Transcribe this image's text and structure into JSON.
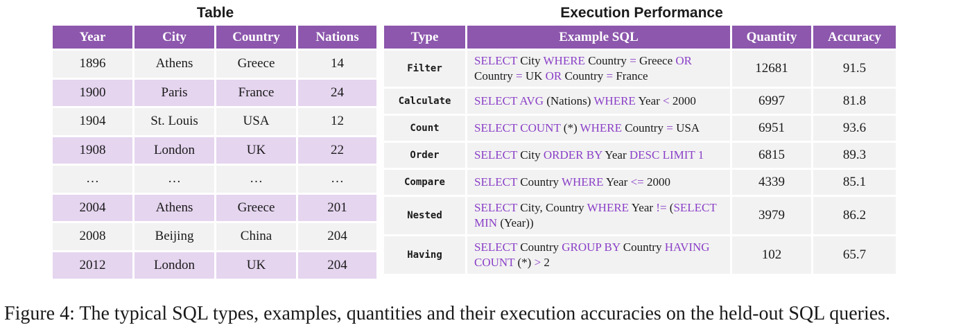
{
  "left_table": {
    "title": "Table",
    "headers": [
      "Year",
      "City",
      "Country",
      "Nations"
    ],
    "rows": [
      [
        "1896",
        "Athens",
        "Greece",
        "14"
      ],
      [
        "1900",
        "Paris",
        "France",
        "24"
      ],
      [
        "1904",
        "St. Louis",
        "USA",
        "12"
      ],
      [
        "1908",
        "London",
        "UK",
        "22"
      ],
      [
        "…",
        "…",
        "…",
        "…"
      ],
      [
        "2004",
        "Athens",
        "Greece",
        "201"
      ],
      [
        "2008",
        "Beijing",
        "China",
        "204"
      ],
      [
        "2012",
        "London",
        "UK",
        "204"
      ]
    ]
  },
  "right_table": {
    "title": "Execution Performance",
    "headers": [
      "Type",
      "Example SQL",
      "Quantity",
      "Accuracy"
    ],
    "rows": [
      {
        "type": "Filter",
        "sql": [
          [
            "SELECT",
            true
          ],
          [
            " City ",
            false
          ],
          [
            "WHERE",
            true
          ],
          [
            " Country ",
            false
          ],
          [
            "=",
            true
          ],
          [
            " Greece ",
            false
          ],
          [
            "OR",
            true
          ],
          [
            " Country ",
            false
          ],
          [
            "=",
            true
          ],
          [
            " UK ",
            false
          ],
          [
            "OR",
            true
          ],
          [
            " Country ",
            false
          ],
          [
            "=",
            true
          ],
          [
            " France",
            false
          ]
        ],
        "quantity": "12681",
        "accuracy": "91.5"
      },
      {
        "type": "Calculate",
        "sql": [
          [
            "SELECT AVG",
            true
          ],
          [
            " (Nations) ",
            false
          ],
          [
            "WHERE",
            true
          ],
          [
            " Year ",
            false
          ],
          [
            "<",
            true
          ],
          [
            " 2000",
            false
          ]
        ],
        "quantity": "6997",
        "accuracy": "81.8"
      },
      {
        "type": "Count",
        "sql": [
          [
            "SELECT COUNT",
            true
          ],
          [
            " (*) ",
            false
          ],
          [
            "WHERE",
            true
          ],
          [
            " Country ",
            false
          ],
          [
            "=",
            true
          ],
          [
            " USA",
            false
          ]
        ],
        "quantity": "6951",
        "accuracy": "93.6"
      },
      {
        "type": "Order",
        "sql": [
          [
            "SELECT",
            true
          ],
          [
            " City ",
            false
          ],
          [
            "ORDER BY",
            true
          ],
          [
            " Year ",
            false
          ],
          [
            "DESC LIMIT 1",
            true
          ]
        ],
        "quantity": "6815",
        "accuracy": "89.3"
      },
      {
        "type": "Compare",
        "sql": [
          [
            "SELECT",
            true
          ],
          [
            " Country ",
            false
          ],
          [
            "WHERE",
            true
          ],
          [
            " Year ",
            false
          ],
          [
            "<=",
            true
          ],
          [
            " 2000",
            false
          ]
        ],
        "quantity": "4339",
        "accuracy": "85.1"
      },
      {
        "type": "Nested",
        "sql": [
          [
            "SELECT",
            true
          ],
          [
            " City, Country ",
            false
          ],
          [
            "WHERE",
            true
          ],
          [
            " Year ",
            false
          ],
          [
            "!=",
            true
          ],
          [
            " (",
            false
          ],
          [
            "SELECT MIN",
            true
          ],
          [
            " (Year))",
            false
          ]
        ],
        "quantity": "3979",
        "accuracy": "86.2"
      },
      {
        "type": "Having",
        "sql": [
          [
            "SELECT",
            true
          ],
          [
            " Country ",
            false
          ],
          [
            "GROUP BY",
            true
          ],
          [
            " Country ",
            false
          ],
          [
            "HAVING COUNT",
            true
          ],
          [
            " (*) ",
            false
          ],
          [
            ">",
            true
          ],
          [
            " 2",
            false
          ]
        ],
        "quantity": "102",
        "accuracy": "65.7"
      }
    ]
  },
  "caption": "Figure 4: The typical SQL types, examples, quantities and their execution accuracies on the held-out SQL queries.",
  "colors": {
    "header": "#8c57ac",
    "keyword": "#8a3fc7",
    "row_light": "#f2f2f2",
    "row_purple": "#e5d5ef"
  }
}
